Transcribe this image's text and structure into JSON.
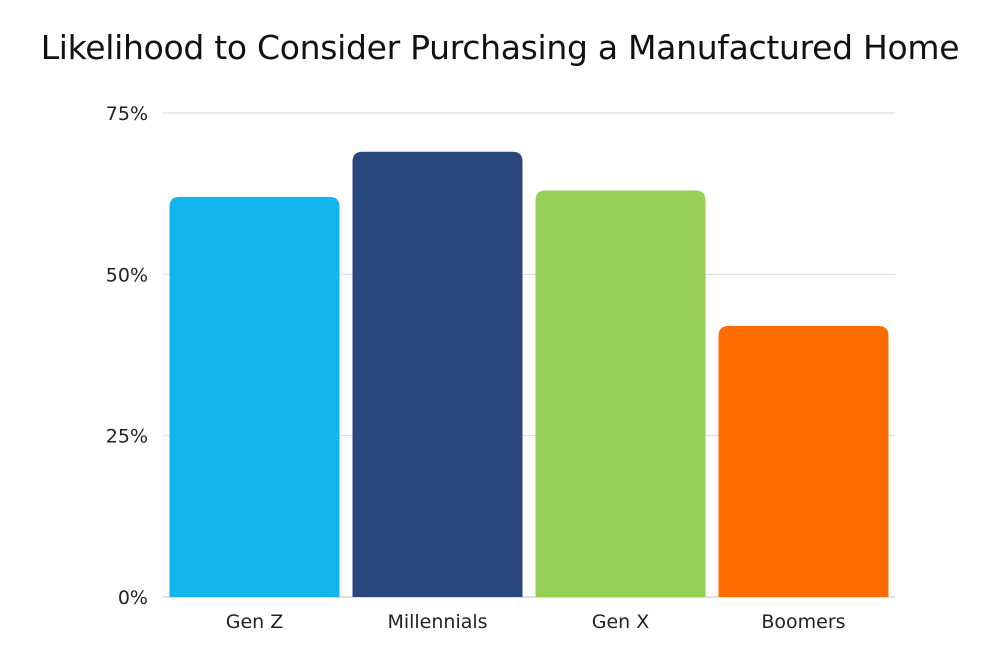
{
  "chart_data": {
    "type": "bar",
    "title": "Likelihood to Consider Purchasing a Manufactured Home",
    "xlabel": "",
    "ylabel": "",
    "categories": [
      "Gen Z",
      "Millennials",
      "Gen X",
      "Boomers"
    ],
    "values": [
      62,
      69,
      63,
      42
    ],
    "colors": [
      "#13b5ee",
      "#27477d",
      "#96d056",
      "#ff6b00"
    ],
    "ylim": [
      0,
      75
    ],
    "yticks": [
      0,
      25,
      50,
      75
    ],
    "ytick_labels": [
      "0%",
      "25%",
      "50%",
      "75%"
    ],
    "grid": true,
    "grid_color": "#d9d9d9",
    "legend": "none"
  }
}
